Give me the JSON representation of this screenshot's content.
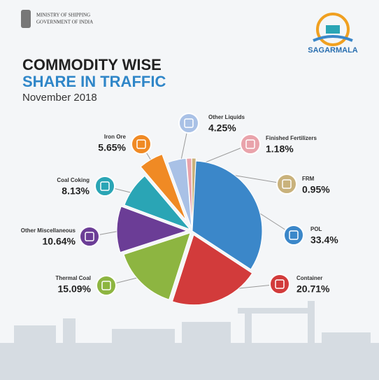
{
  "header": {
    "ministry": "MINISTRY OF SHIPPING",
    "government": "GOVERNMENT OF INDIA",
    "brand": "SAGARMALA"
  },
  "chart_data": {
    "type": "pie",
    "title": "COMMODITY WISE",
    "title2": "SHARE IN TRAFFIC",
    "subtitle": "November 2018",
    "categories": [
      "Other Liquids",
      "Finished Fertilizers",
      "FRM",
      "POL",
      "Container",
      "Thermal Coal",
      "Other Miscellaneous",
      "Coal Coking",
      "Iron Ore"
    ],
    "values": [
      4.25,
      1.18,
      0.95,
      33.4,
      20.71,
      15.09,
      10.64,
      8.13,
      5.65
    ],
    "value_labels": [
      "4.25%",
      "1.18%",
      "0.95%",
      "33.4%",
      "20.71%",
      "15.09%",
      "10.64%",
      "8.13%",
      "5.65%"
    ],
    "colors": [
      "#a9c1e6",
      "#e9a3ab",
      "#c9b27c",
      "#3b87c9",
      "#d23b3b",
      "#8db541",
      "#6b3d96",
      "#2aa5b5",
      "#f08a24"
    ]
  }
}
